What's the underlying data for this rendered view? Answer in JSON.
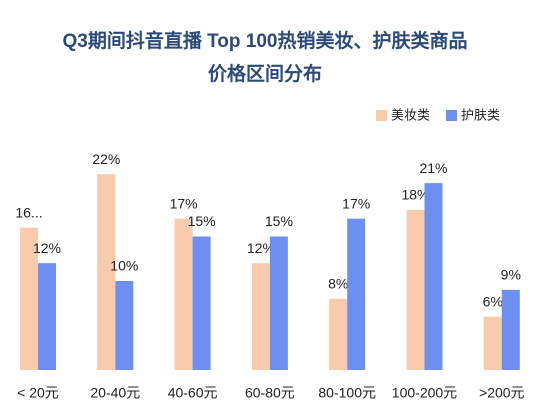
{
  "chart_data": {
    "type": "bar",
    "title": "Q3期间抖音直播 Top 100热销美妆、护肤类商品",
    "subtitle": "价格区间分布",
    "categories": [
      "< 20元",
      "20-40元",
      "40-60元",
      "60-80元",
      "80-100元",
      "100-200元",
      ">200元"
    ],
    "series": [
      {
        "name": "美妆类",
        "color": "#f8cbad",
        "values": [
          16,
          22,
          17,
          12,
          8,
          18,
          6
        ],
        "value_labels": [
          "16...",
          "22%",
          "17%",
          "12%",
          "8%",
          "18%",
          "6%"
        ]
      },
      {
        "name": "护肤类",
        "color": "#6e8ff2",
        "values": [
          12,
          10,
          15,
          15,
          17,
          21,
          9
        ],
        "value_labels": [
          "12%",
          "10%",
          "15%",
          "15%",
          "17%",
          "21%",
          "9%"
        ]
      }
    ]
  }
}
